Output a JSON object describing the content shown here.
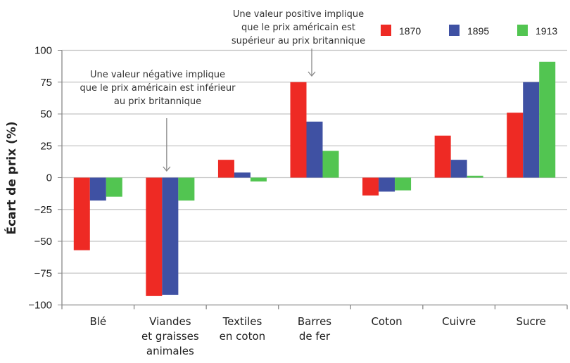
{
  "chart_data": {
    "type": "bar",
    "title": "",
    "xlabel": "",
    "ylabel": "Écart de prix (%)",
    "ylim": [
      -100,
      100
    ],
    "yticks": [
      100,
      75,
      50,
      25,
      0,
      -25,
      -50,
      -75,
      -100
    ],
    "ytick_labels": [
      "100",
      "75",
      "50",
      "25",
      "0",
      "−25",
      "−50",
      "−75",
      "−100"
    ],
    "grid": true,
    "legend_position": "top-right",
    "categories": [
      [
        "Blé"
      ],
      [
        "Viandes",
        "et graisses",
        "animales"
      ],
      [
        "Textiles",
        "en coton"
      ],
      [
        "Barres",
        "de fer"
      ],
      [
        "Coton"
      ],
      [
        "Cuivre"
      ],
      [
        "Sucre"
      ]
    ],
    "series": [
      {
        "name": "1870",
        "color": "#ee2a24",
        "values": [
          -57,
          -93,
          14,
          75,
          -14,
          33,
          51
        ]
      },
      {
        "name": "1895",
        "color": "#3f51a3",
        "values": [
          -18,
          -92,
          4,
          44,
          -11,
          14,
          75
        ]
      },
      {
        "name": "1913",
        "color": "#52c551",
        "values": [
          -15,
          -18,
          -3,
          21,
          -10,
          1.5,
          91
        ]
      }
    ],
    "annotations": [
      {
        "lines": [
          "Une valeur négative implique",
          "que le prix américain est inférieur",
          "au prix britannique"
        ],
        "category": 1
      },
      {
        "lines": [
          "Une valeur positive implique",
          "que le prix américain est",
          "supérieur au prix britannique"
        ],
        "category": 3
      }
    ]
  }
}
